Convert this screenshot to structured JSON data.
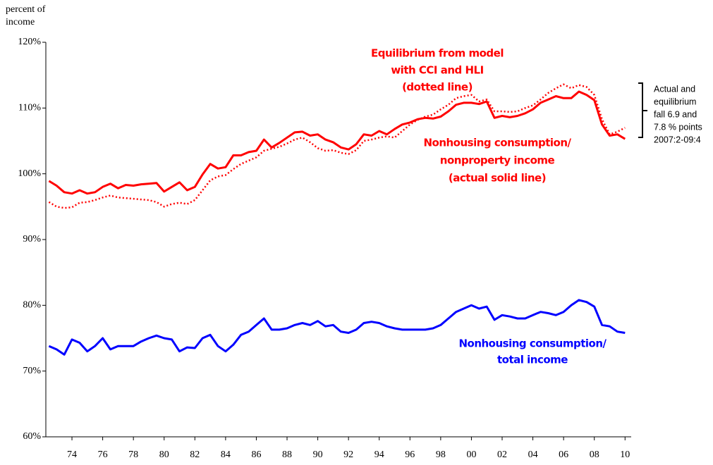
{
  "chart_data": {
    "type": "line",
    "y_label_lines": [
      "percent of",
      "income"
    ],
    "x": [
      1972.5,
      1973,
      1973.5,
      1974,
      1974.5,
      1975,
      1975.5,
      1976,
      1976.5,
      1977,
      1977.5,
      1978,
      1978.5,
      1979,
      1979.5,
      1980,
      1980.5,
      1981,
      1981.5,
      1982,
      1982.5,
      1983,
      1983.5,
      1984,
      1984.5,
      1985,
      1985.5,
      1986,
      1986.5,
      1987,
      1987.5,
      1988,
      1988.5,
      1989,
      1989.5,
      1990,
      1990.5,
      1991,
      1991.5,
      1992,
      1992.5,
      1993,
      1993.5,
      1994,
      1994.5,
      1995,
      1995.5,
      1996,
      1996.5,
      1997,
      1997.5,
      1998,
      1998.5,
      1999,
      1999.5,
      2000,
      2000.5,
      2001,
      2001.5,
      2002,
      2002.5,
      2003,
      2003.5,
      2004,
      2004.5,
      2005,
      2005.5,
      2006,
      2006.5,
      2007,
      2007.5,
      2008,
      2008.5,
      2009,
      2009.5,
      2010
    ],
    "series": [
      {
        "color": "#ff0000",
        "dash": "solid",
        "values": [
          98.9,
          98.2,
          97.2,
          97.0,
          97.5,
          97.0,
          97.2,
          98.0,
          98.5,
          97.8,
          98.3,
          98.2,
          98.4,
          98.5,
          98.6,
          97.3,
          98.0,
          98.7,
          97.5,
          98.0,
          99.9,
          101.5,
          100.8,
          101.0,
          102.8,
          102.8,
          103.3,
          103.5,
          105.2,
          104.0,
          104.7,
          105.5,
          106.3,
          106.4,
          105.8,
          106.0,
          105.2,
          104.8,
          104.0,
          103.7,
          104.5,
          106.0,
          105.8,
          106.5,
          106.0,
          106.8,
          107.5,
          107.8,
          108.3,
          108.5,
          108.4,
          108.7,
          109.5,
          110.5,
          110.8,
          110.8,
          110.6,
          111.0,
          108.5,
          108.8,
          108.6,
          108.8,
          109.2,
          109.8,
          110.8,
          111.3,
          111.8,
          111.5,
          111.5,
          112.5,
          112.0,
          111.2,
          107.5,
          105.8,
          106.0,
          105.3
        ]
      },
      {
        "color": "#ff0000",
        "dash": "dotted",
        "values": [
          95.7,
          95.0,
          94.8,
          94.9,
          95.6,
          95.7,
          96.0,
          96.4,
          96.7,
          96.4,
          96.3,
          96.2,
          96.1,
          96.0,
          95.7,
          95.0,
          95.4,
          95.6,
          95.4,
          96.0,
          97.5,
          99.0,
          99.6,
          99.8,
          100.7,
          101.5,
          102.0,
          102.5,
          103.5,
          103.8,
          104.1,
          104.6,
          105.2,
          105.5,
          104.8,
          103.9,
          103.5,
          103.6,
          103.2,
          103.0,
          103.6,
          105.0,
          105.2,
          105.5,
          105.7,
          105.5,
          106.5,
          107.5,
          108.2,
          108.7,
          109.0,
          109.8,
          110.5,
          111.5,
          111.8,
          112.0,
          111.0,
          111.3,
          109.5,
          109.5,
          109.4,
          109.5,
          110.0,
          110.4,
          111.3,
          112.3,
          113.0,
          113.6,
          113.0,
          113.5,
          113.2,
          112.0,
          108.3,
          106.0,
          106.4,
          107.0
        ]
      },
      {
        "color": "#0000ff",
        "dash": "solid",
        "values": [
          73.8,
          73.3,
          72.5,
          74.8,
          74.3,
          73.0,
          73.8,
          75.0,
          73.3,
          73.8,
          73.8,
          73.8,
          74.5,
          75.0,
          75.4,
          75.0,
          74.8,
          73.0,
          73.6,
          73.5,
          75.0,
          75.5,
          73.8,
          73.0,
          74.0,
          75.5,
          76.0,
          77.0,
          78.0,
          76.3,
          76.3,
          76.5,
          77.0,
          77.3,
          77.0,
          77.6,
          76.8,
          77.0,
          76.0,
          75.8,
          76.3,
          77.3,
          77.5,
          77.3,
          76.8,
          76.5,
          76.3,
          76.3,
          76.3,
          76.3,
          76.5,
          77.0,
          78.0,
          79.0,
          79.5,
          80.0,
          79.5,
          79.8,
          77.8,
          78.5,
          78.3,
          78.0,
          78.0,
          78.5,
          79.0,
          78.8,
          78.5,
          79.0,
          80.0,
          80.8,
          80.5,
          79.8,
          77.0,
          76.8,
          76.0,
          75.8
        ]
      }
    ],
    "xlim": [
      1972.3,
      2010.4
    ],
    "ylim": [
      60,
      120
    ],
    "yticks": [
      {
        "value": 60,
        "label": "60%"
      },
      {
        "value": 70,
        "label": "70%"
      },
      {
        "value": 80,
        "label": "80%"
      },
      {
        "value": 90,
        "label": "90%"
      },
      {
        "value": 100,
        "label": "100%"
      },
      {
        "value": 110,
        "label": "110%"
      },
      {
        "value": 120,
        "label": "120%"
      }
    ],
    "xticks": [
      {
        "value": 1974,
        "label": "74"
      },
      {
        "value": 1976,
        "label": "76"
      },
      {
        "value": 1978,
        "label": "78"
      },
      {
        "value": 1980,
        "label": "80"
      },
      {
        "value": 1982,
        "label": "82"
      },
      {
        "value": 1984,
        "label": "84"
      },
      {
        "value": 1986,
        "label": "86"
      },
      {
        "value": 1988,
        "label": "88"
      },
      {
        "value": 1990,
        "label": "90"
      },
      {
        "value": 1992,
        "label": "92"
      },
      {
        "value": 1994,
        "label": "94"
      },
      {
        "value": 1996,
        "label": "96"
      },
      {
        "value": 1998,
        "label": "98"
      },
      {
        "value": 2000,
        "label": "00"
      },
      {
        "value": 2002,
        "label": "02"
      },
      {
        "value": 2004,
        "label": "04"
      },
      {
        "value": 2006,
        "label": "06"
      },
      {
        "value": 2008,
        "label": "08"
      },
      {
        "value": 2010,
        "label": "10"
      }
    ],
    "annotations": [
      {
        "color": "#ff0000",
        "lines": [
          "Equilibrium from model",
          "with CCI and HLI",
          "(dotted line)"
        ]
      },
      {
        "color": "#ff0000",
        "lines": [
          "Nonhousing consumption/",
          "nonproperty income",
          "(actual solid line)"
        ]
      },
      {
        "color": "#0000ff",
        "lines": [
          "Nonhousing consumption/",
          "total income"
        ]
      },
      {
        "color": "#000000",
        "lines": [
          "Actual and",
          "equilibrium",
          "fall 6.9 and",
          "7.8 % points",
          "2007:2-09:4"
        ]
      }
    ]
  }
}
